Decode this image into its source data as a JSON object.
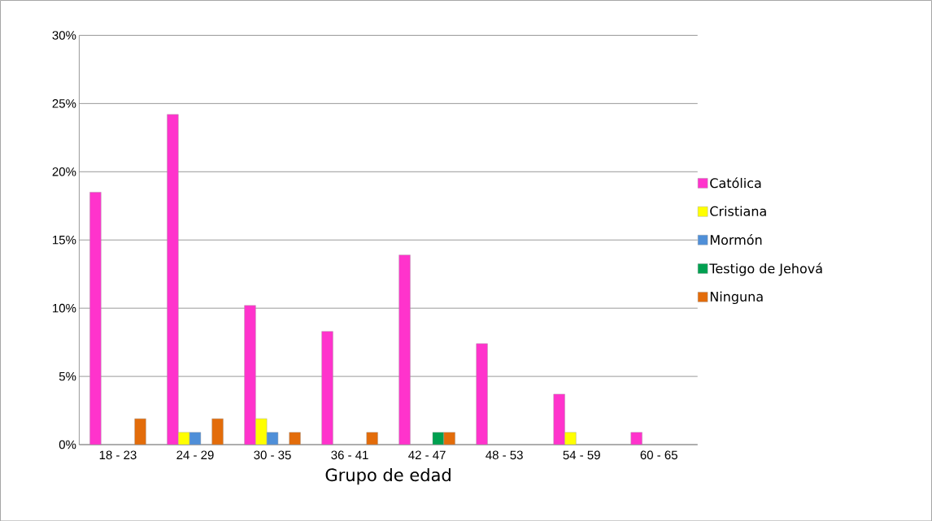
{
  "chart_data": {
    "type": "bar",
    "xlabel": "Grupo de edad",
    "categories": [
      "18 - 23",
      "24 - 29",
      "30 - 35",
      "36 - 41",
      "42 - 47",
      "48 - 53",
      "54 - 59",
      "60 - 65"
    ],
    "series": [
      {
        "name": "Católica",
        "color": "#ff33cc",
        "values": [
          18.5,
          24.2,
          10.2,
          8.3,
          13.9,
          7.4,
          3.7,
          0.9
        ]
      },
      {
        "name": "Cristiana",
        "color": "#ffff00",
        "values": [
          null,
          0.9,
          1.9,
          null,
          null,
          null,
          0.9,
          null
        ]
      },
      {
        "name": "Mormón",
        "color": "#4f8fd8",
        "values": [
          null,
          0.9,
          0.9,
          null,
          null,
          null,
          null,
          null
        ]
      },
      {
        "name": "Testigo de Jehová",
        "color": "#00a050",
        "values": [
          null,
          null,
          null,
          null,
          0.9,
          null,
          null,
          null
        ]
      },
      {
        "name": "Ninguna",
        "color": "#e36c0a",
        "values": [
          1.9,
          1.9,
          0.9,
          0.9,
          0.9,
          null,
          null,
          null
        ]
      }
    ],
    "ylim": [
      0,
      30
    ],
    "yticks": [
      {
        "value": 0,
        "label": "0%"
      },
      {
        "value": 5,
        "label": "5%"
      },
      {
        "value": 10,
        "label": "10%"
      },
      {
        "value": 15,
        "label": "15%"
      },
      {
        "value": 20,
        "label": "20%"
      },
      {
        "value": 25,
        "label": "25%"
      },
      {
        "value": 30,
        "label": "30%"
      }
    ],
    "grid": "y",
    "legend": "right"
  }
}
